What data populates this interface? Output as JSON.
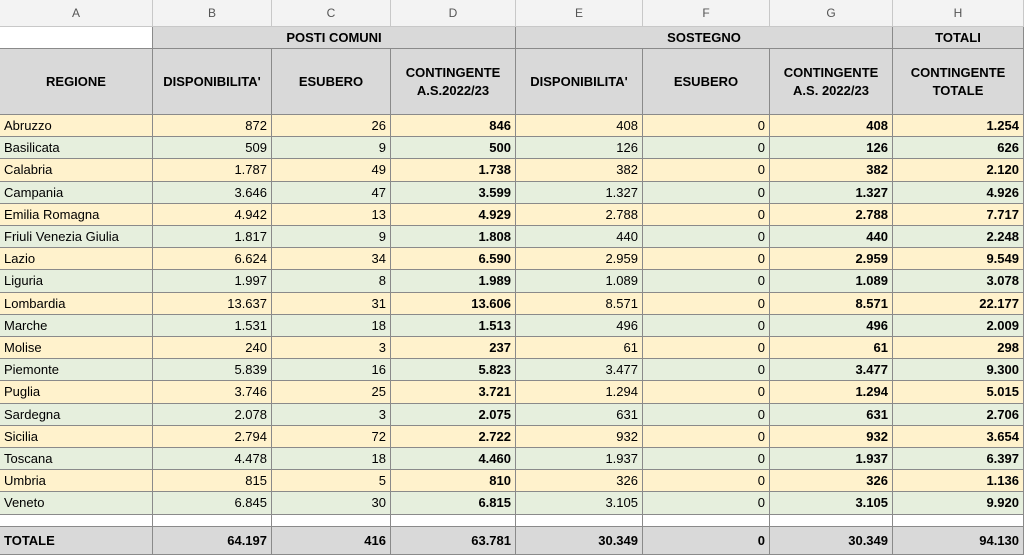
{
  "column_letters": [
    "A",
    "B",
    "C",
    "D",
    "E",
    "F",
    "G",
    "H"
  ],
  "group_headers": {
    "posti_comuni": "POSTI COMUNI",
    "sostegno": "SOSTEGNO",
    "totali": "TOTALI"
  },
  "headers": {
    "regione": "REGIONE",
    "pc_disponibilita": "DISPONIBILITA'",
    "pc_esubero": "ESUBERO",
    "pc_contingente": "CONTINGENTE A.S.2022/23",
    "so_disponibilita": "DISPONIBILITA'",
    "so_esubero": "ESUBERO",
    "so_contingente": "CONTINGENTE A.S. 2022/23",
    "contingente_totale": "CONTINGENTE TOTALE"
  },
  "rows": [
    [
      "Abruzzo",
      "872",
      "26",
      "846",
      "408",
      "0",
      "408",
      "1.254"
    ],
    [
      "Basilicata",
      "509",
      "9",
      "500",
      "126",
      "0",
      "126",
      "626"
    ],
    [
      "Calabria",
      "1.787",
      "49",
      "1.738",
      "382",
      "0",
      "382",
      "2.120"
    ],
    [
      "Campania",
      "3.646",
      "47",
      "3.599",
      "1.327",
      "0",
      "1.327",
      "4.926"
    ],
    [
      "Emilia Romagna",
      "4.942",
      "13",
      "4.929",
      "2.788",
      "0",
      "2.788",
      "7.717"
    ],
    [
      "Friuli Venezia Giulia",
      "1.817",
      "9",
      "1.808",
      "440",
      "0",
      "440",
      "2.248"
    ],
    [
      "Lazio",
      "6.624",
      "34",
      "6.590",
      "2.959",
      "0",
      "2.959",
      "9.549"
    ],
    [
      "Liguria",
      "1.997",
      "8",
      "1.989",
      "1.089",
      "0",
      "1.089",
      "3.078"
    ],
    [
      "Lombardia",
      "13.637",
      "31",
      "13.606",
      "8.571",
      "0",
      "8.571",
      "22.177"
    ],
    [
      "Marche",
      "1.531",
      "18",
      "1.513",
      "496",
      "0",
      "496",
      "2.009"
    ],
    [
      "Molise",
      "240",
      "3",
      "237",
      "61",
      "0",
      "61",
      "298"
    ],
    [
      "Piemonte",
      "5.839",
      "16",
      "5.823",
      "3.477",
      "0",
      "3.477",
      "9.300"
    ],
    [
      "Puglia",
      "3.746",
      "25",
      "3.721",
      "1.294",
      "0",
      "1.294",
      "5.015"
    ],
    [
      "Sardegna",
      "2.078",
      "3",
      "2.075",
      "631",
      "0",
      "631",
      "2.706"
    ],
    [
      "Sicilia",
      "2.794",
      "72",
      "2.722",
      "932",
      "0",
      "932",
      "3.654"
    ],
    [
      "Toscana",
      "4.478",
      "18",
      "4.460",
      "1.937",
      "0",
      "1.937",
      "6.397"
    ],
    [
      "Umbria",
      "815",
      "5",
      "810",
      "326",
      "0",
      "326",
      "1.136"
    ],
    [
      "Veneto",
      "6.845",
      "30",
      "6.815",
      "3.105",
      "0",
      "3.105",
      "9.920"
    ]
  ],
  "totals": [
    "TOTALE",
    "64.197",
    "416",
    "63.781",
    "30.349",
    "0",
    "30.349",
    "94.130"
  ],
  "colors": {
    "row_yellow": "#fff2cc",
    "row_green": "#e6efdd",
    "header_gray": "#d9d9d9"
  }
}
